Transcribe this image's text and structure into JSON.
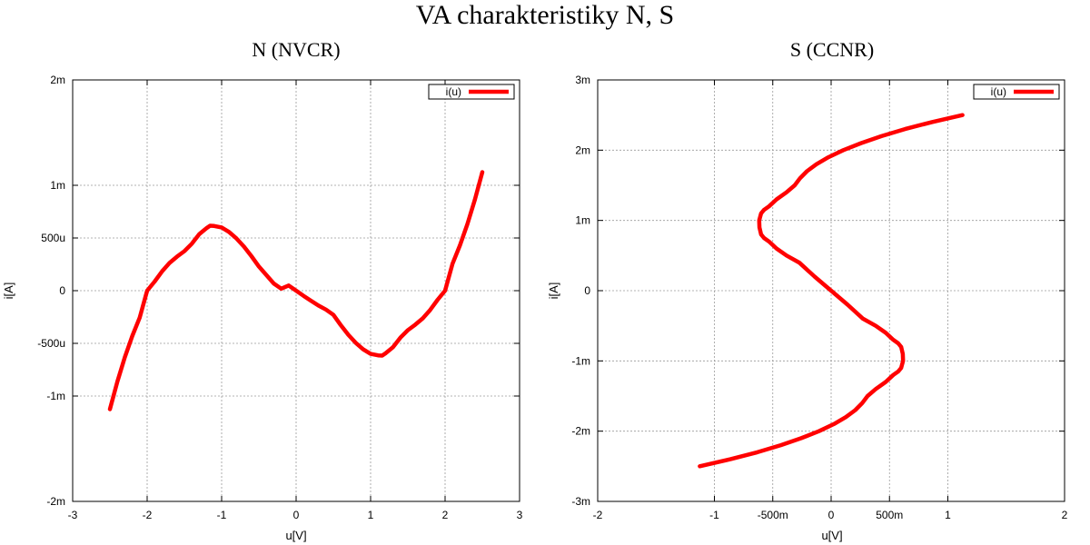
{
  "figure": {
    "title": "VA charakteristiky N, S"
  },
  "chart_data": [
    {
      "type": "line",
      "title": "N (NVCR)",
      "xlabel": "u[V]",
      "ylabel": "i[A]",
      "xlim": [
        -3,
        3
      ],
      "ylim": [
        -0.002,
        0.002
      ],
      "xticks": [
        -3,
        -2,
        -1,
        0,
        1,
        2,
        3
      ],
      "xtick_labels": [
        "-3",
        "-2",
        "-1",
        "0",
        "1",
        "2",
        "3"
      ],
      "yticks": [
        -0.002,
        -0.001,
        -0.0005,
        0,
        0.0005,
        0.001,
        0.002
      ],
      "ytick_labels": [
        "-2m",
        "-1m",
        "-500u",
        "0",
        "500u",
        "1m",
        "2m"
      ],
      "grid": true,
      "legend_position": "top-right",
      "series": [
        {
          "name": "i(u)",
          "color": "#ff0000",
          "x": [
            -2.5,
            -2.4,
            -2.3,
            -2.2,
            -2.1,
            -2.0,
            -1.9,
            -1.8,
            -1.7,
            -1.6,
            -1.5,
            -1.4,
            -1.3,
            -1.2,
            -1.1547,
            -1.1,
            -1.0,
            -0.9,
            -0.8,
            -0.7,
            -0.6,
            -0.5,
            -0.4,
            -0.3,
            -0.2,
            -0.1,
            0.0,
            0.1,
            0.2,
            0.3,
            0.4,
            0.5,
            0.6,
            0.7,
            0.8,
            0.9,
            1.0,
            1.1,
            1.1547,
            1.2,
            1.3,
            1.4,
            1.5,
            1.6,
            1.7,
            1.8,
            1.9,
            2.0,
            2.1,
            2.2,
            2.3,
            2.4,
            2.5
          ],
          "y": [
            -0.001125,
            -0.000864,
            -0.000633,
            -0.000431,
            -0.000256,
            0.0,
            8.6e-05,
            0.000183,
            0.000263,
            0.000322,
            0.000375,
            0.000446,
            0.000537,
            0.000595,
            0.000616,
            0.000614,
            0.0006,
            0.000557,
            0.000495,
            0.000418,
            0.000328,
            0.000229,
            0.000149,
            6.8e-05,
            1.9e-05,
            4.9e-05,
            0.0,
            -4.9e-05,
            -9.6e-05,
            -0.000141,
            -0.000179,
            -0.000229,
            -0.000328,
            -0.000418,
            -0.000495,
            -0.000557,
            -0.0006,
            -0.000614,
            -0.000616,
            -0.000595,
            -0.000537,
            -0.000446,
            -0.000375,
            -0.000322,
            -0.000263,
            -0.000183,
            -8.6e-05,
            0.0,
            0.000256,
            0.000431,
            0.000633,
            0.000864,
            0.001125
          ]
        }
      ]
    },
    {
      "type": "line",
      "title": "S (CCNR)",
      "xlabel": "u[V]",
      "ylabel": "i[A]",
      "xlim": [
        -2,
        2
      ],
      "ylim": [
        -0.003,
        0.003
      ],
      "xticks": [
        -2,
        -1,
        -0.5,
        0,
        0.5,
        1,
        2
      ],
      "xtick_labels": [
        "-2",
        "-1",
        "-500m",
        "0",
        "500m",
        "1",
        "2"
      ],
      "yticks": [
        -0.003,
        -0.002,
        -0.001,
        0,
        0.001,
        0.002,
        0.003
      ],
      "ytick_labels": [
        "-3m",
        "-2m",
        "-1m",
        "0",
        "1m",
        "2m",
        "3m"
      ],
      "grid": true,
      "legend_position": "top-right",
      "series": [
        {
          "name": "i(u)",
          "color": "#ff0000",
          "x": [
            -1.125,
            -0.864,
            -0.633,
            -0.431,
            -0.256,
            -0.104,
            0.023,
            0.126,
            0.207,
            0.267,
            0.312,
            0.382,
            0.468,
            0.532,
            0.575,
            0.6,
            0.616,
            0.614,
            0.6,
            0.575,
            0.532,
            0.468,
            0.382,
            0.273,
            0.142,
            0.0,
            -0.142,
            -0.273,
            -0.382,
            -0.468,
            -0.532,
            -0.575,
            -0.6,
            -0.614,
            -0.616,
            -0.6,
            -0.575,
            -0.532,
            -0.468,
            -0.382,
            -0.312,
            -0.267,
            -0.207,
            -0.126,
            -0.023,
            0.104,
            0.256,
            0.431,
            0.633,
            0.864,
            1.125
          ],
          "y": [
            -0.0025,
            -0.0024,
            -0.0023,
            -0.0022,
            -0.0021,
            -0.002,
            -0.0019,
            -0.0018,
            -0.0017,
            -0.0016,
            -0.0015,
            -0.0014,
            -0.0013,
            -0.0012,
            -0.00115,
            -0.0011,
            -0.001,
            -0.0009,
            -0.0008,
            -0.00075,
            -0.0007,
            -0.0006,
            -0.0005,
            -0.0004,
            -0.0002,
            0.0,
            0.0002,
            0.0004,
            0.0005,
            0.0006,
            0.0007,
            0.00075,
            0.0008,
            0.0009,
            0.001,
            0.0011,
            0.00115,
            0.0012,
            0.0013,
            0.0014,
            0.0015,
            0.0016,
            0.0017,
            0.0018,
            0.0019,
            0.002,
            0.0021,
            0.0022,
            0.0023,
            0.0024,
            0.0025
          ]
        }
      ]
    }
  ]
}
